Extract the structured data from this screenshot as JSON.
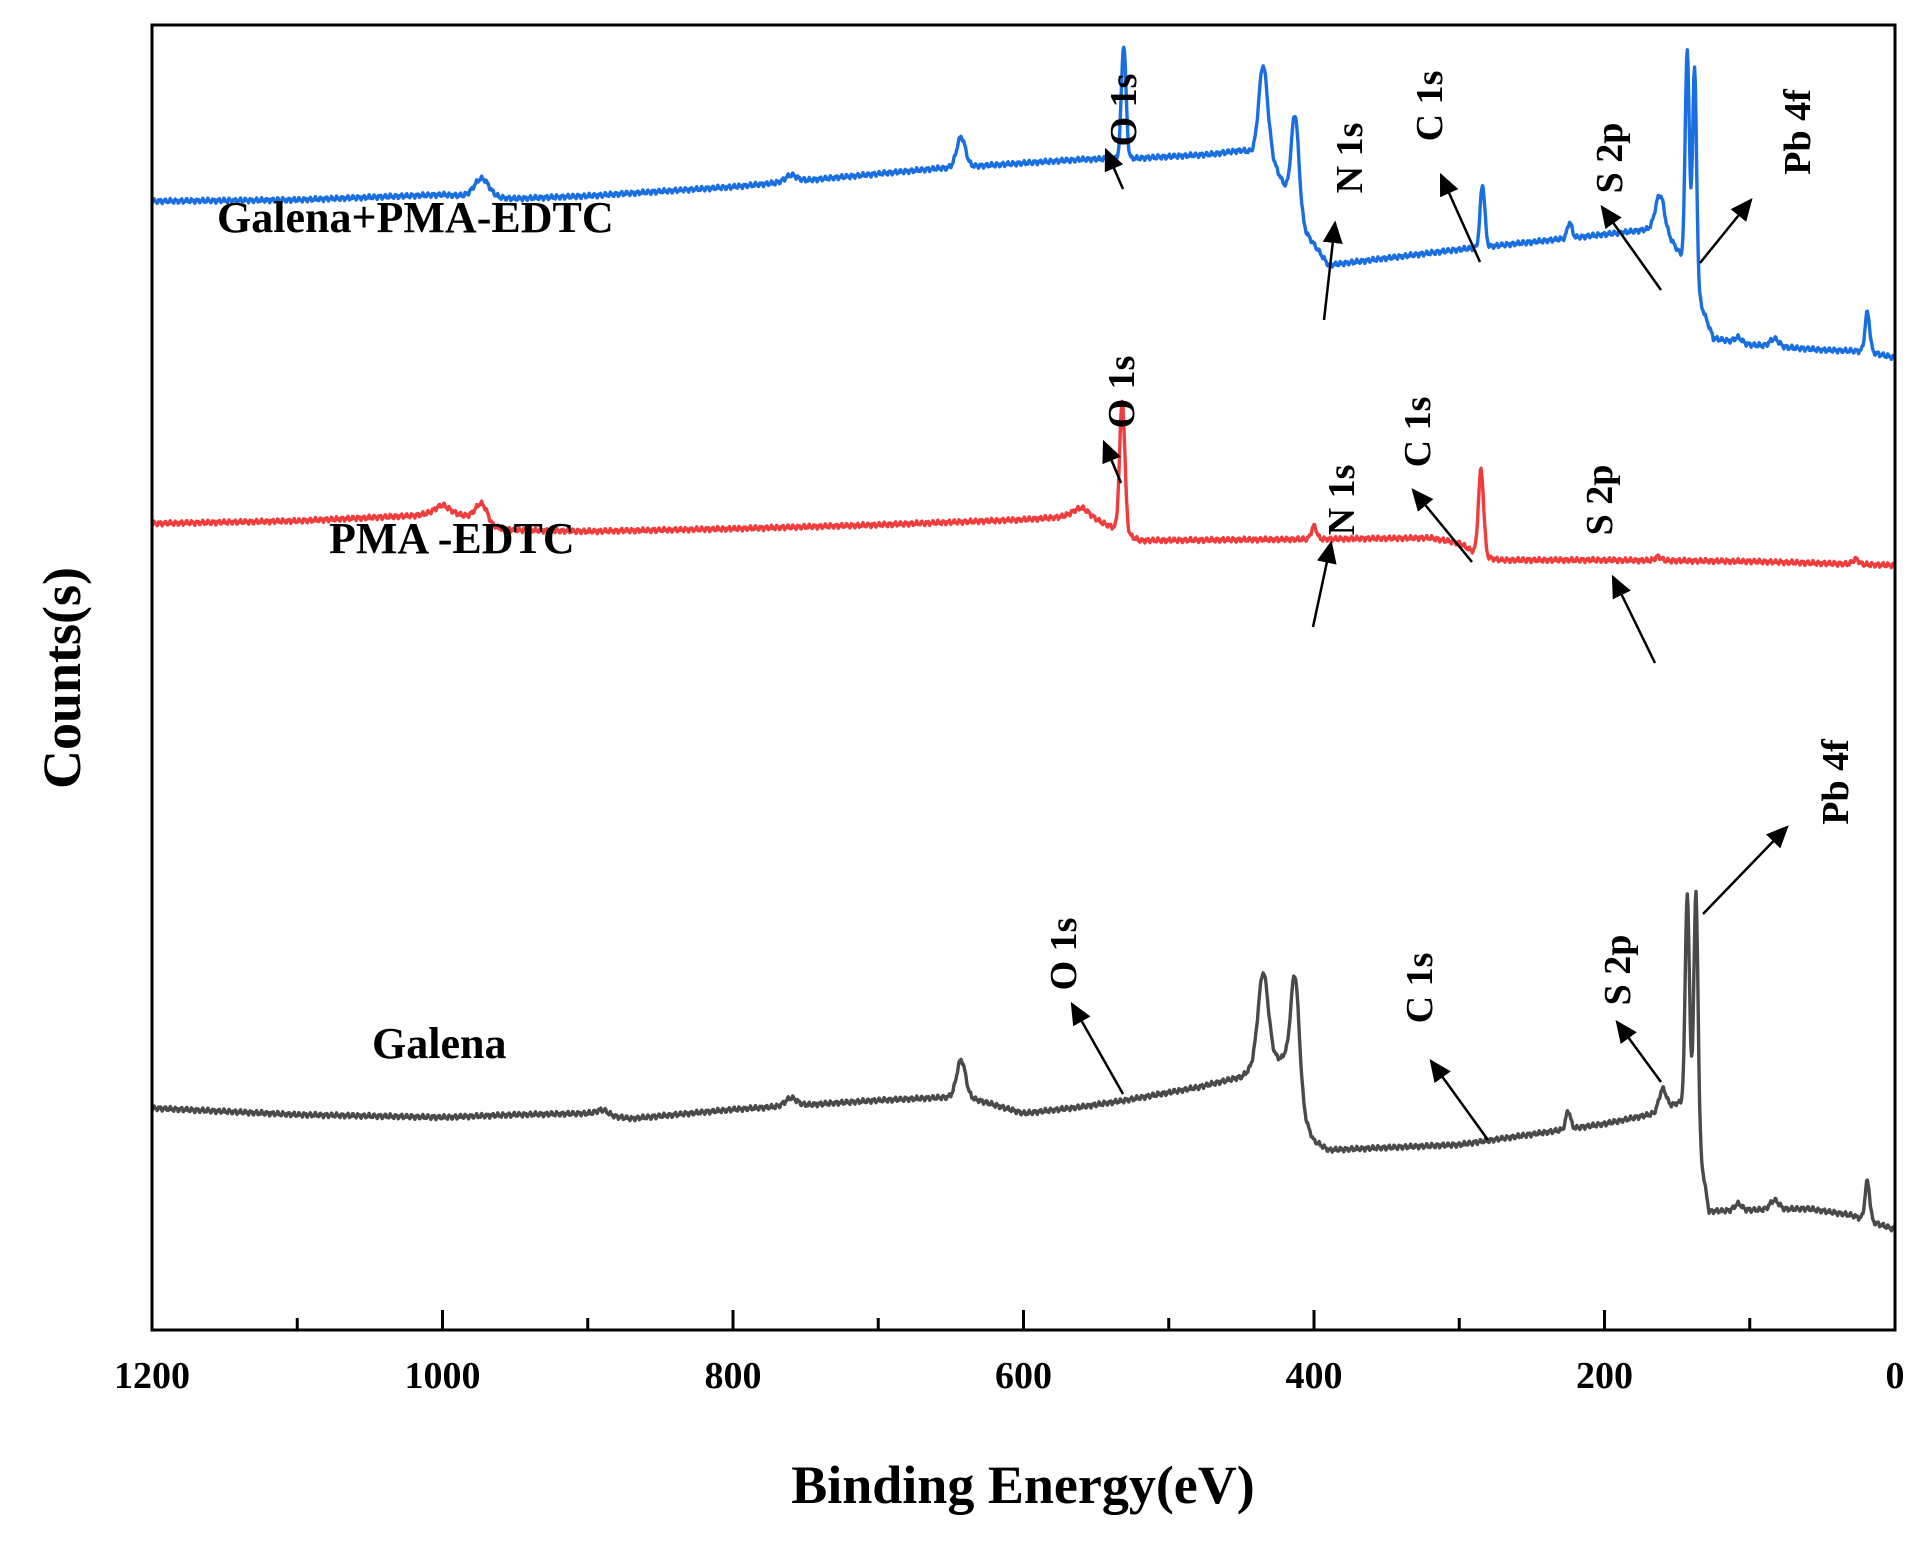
{
  "chart_data": {
    "type": "line",
    "title": "",
    "xlabel": "Binding Energy(eV)",
    "ylabel": "Counts(s)",
    "xlim": [
      1200,
      0
    ],
    "x_reversed": true,
    "y_ticks_shown": false,
    "grid": false,
    "x_ticks": [
      "1200",
      "1000",
      "800",
      "600",
      "400",
      "200",
      "0"
    ],
    "x_tick_values": [
      1200,
      1000,
      800,
      600,
      400,
      200,
      0
    ],
    "ylim": [
      0,
      100
    ],
    "series": [
      {
        "name": "Galena+PMA-EDTC",
        "color": "#1a6fe0",
        "baseline": [
          [
            1200,
            86.5
          ],
          [
            1100,
            86.6
          ],
          [
            1000,
            87.0
          ],
          [
            950,
            86.7
          ],
          [
            900,
            86.9
          ],
          [
            800,
            87.6
          ],
          [
            700,
            88.6
          ],
          [
            660,
            89.0
          ],
          [
            560,
            89.7
          ],
          [
            520,
            89.8
          ],
          [
            470,
            90.1
          ],
          [
            450,
            90.4
          ],
          [
            430,
            90.0
          ],
          [
            405,
            84.0
          ],
          [
            390,
            81.6
          ],
          [
            300,
            82.8
          ],
          [
            230,
            83.6
          ],
          [
            180,
            84.2
          ],
          [
            160,
            84.5
          ],
          [
            145,
            82.0
          ],
          [
            125,
            76.0
          ],
          [
            100,
            75.5
          ],
          [
            50,
            75.1
          ],
          [
            20,
            75.0
          ],
          [
            0,
            74.5
          ]
        ],
        "peaks": [
          {
            "center": 973,
            "height": 1.4,
            "width": 5
          },
          {
            "center": 760,
            "height": 0.5,
            "width": 4
          },
          {
            "center": 643,
            "height": 2.3,
            "width": 3
          },
          {
            "center": 531,
            "height": 8.7,
            "width": 1.6
          },
          {
            "center": 435,
            "height": 6.8,
            "width": 3
          },
          {
            "center": 413,
            "height": 7.2,
            "width": 2.6
          },
          {
            "center": 284,
            "height": 4.8,
            "width": 1.6
          },
          {
            "center": 224,
            "height": 1.2,
            "width": 1.6
          },
          {
            "center": 162,
            "height": 2.5,
            "width": 3
          },
          {
            "center": 143,
            "height": 16.8,
            "width": 1.4
          },
          {
            "center": 138,
            "height": 16.8,
            "width": 1.4
          },
          {
            "center": 108,
            "height": 0.4,
            "width": 2.5
          },
          {
            "center": 83,
            "height": 0.6,
            "width": 3
          },
          {
            "center": 19,
            "height": 3.0,
            "width": 1.6
          }
        ]
      },
      {
        "name": "PMA -EDTC",
        "color": "#f03c3c",
        "baseline": [
          [
            1200,
            61.8
          ],
          [
            1100,
            62.0
          ],
          [
            1020,
            62.4
          ],
          [
            1000,
            62.7
          ],
          [
            980,
            62.3
          ],
          [
            965,
            61.5
          ],
          [
            950,
            61.3
          ],
          [
            900,
            61.2
          ],
          [
            800,
            61.4
          ],
          [
            700,
            61.7
          ],
          [
            600,
            62.1
          ],
          [
            560,
            62.4
          ],
          [
            540,
            61.6
          ],
          [
            520,
            60.5
          ],
          [
            400,
            60.6
          ],
          [
            320,
            60.7
          ],
          [
            300,
            60.3
          ],
          [
            285,
            59.3
          ],
          [
            272,
            59.0
          ],
          [
            200,
            59.0
          ],
          [
            100,
            58.9
          ],
          [
            0,
            58.6
          ]
        ],
        "peaks": [
          {
            "center": 1000,
            "height": 0.5,
            "width": 5
          },
          {
            "center": 973,
            "height": 1.4,
            "width": 4
          },
          {
            "center": 560,
            "height": 0.6,
            "width": 6
          },
          {
            "center": 532,
            "height": 10.0,
            "width": 1.8
          },
          {
            "center": 400,
            "height": 1.0,
            "width": 1.8
          },
          {
            "center": 285,
            "height": 6.6,
            "width": 1.8
          },
          {
            "center": 163,
            "height": 0.3,
            "width": 2
          },
          {
            "center": 27,
            "height": 0.4,
            "width": 2
          }
        ]
      },
      {
        "name": "Galena",
        "color": "#4a4a4a",
        "baseline": [
          [
            1200,
            17.0
          ],
          [
            1100,
            16.5
          ],
          [
            1000,
            16.3
          ],
          [
            950,
            16.5
          ],
          [
            900,
            16.6
          ],
          [
            870,
            16.2
          ],
          [
            800,
            16.9
          ],
          [
            700,
            17.6
          ],
          [
            640,
            17.9
          ],
          [
            600,
            16.6
          ],
          [
            560,
            17.1
          ],
          [
            530,
            17.6
          ],
          [
            480,
            18.6
          ],
          [
            450,
            19.4
          ],
          [
            435,
            20.8
          ],
          [
            420,
            20.8
          ],
          [
            410,
            17.0
          ],
          [
            400,
            14.5
          ],
          [
            390,
            13.8
          ],
          [
            300,
            14.2
          ],
          [
            250,
            15.0
          ],
          [
            200,
            15.8
          ],
          [
            165,
            16.6
          ],
          [
            150,
            17.4
          ],
          [
            140,
            17.6
          ],
          [
            128,
            9.1
          ],
          [
            100,
            9.2
          ],
          [
            60,
            9.3
          ],
          [
            30,
            8.8
          ],
          [
            0,
            7.7
          ]
        ],
        "peaks": [
          {
            "center": 890,
            "height": 0.4,
            "width": 4
          },
          {
            "center": 760,
            "height": 0.6,
            "width": 4
          },
          {
            "center": 643,
            "height": 2.8,
            "width": 3
          },
          {
            "center": 435,
            "height": 6.6,
            "width": 3.5
          },
          {
            "center": 413,
            "height": 9.0,
            "width": 3
          },
          {
            "center": 225,
            "height": 1.4,
            "width": 1.6
          },
          {
            "center": 160,
            "height": 1.6,
            "width": 2.5
          },
          {
            "center": 143,
            "height": 16.0,
            "width": 1.4
          },
          {
            "center": 137,
            "height": 18.0,
            "width": 1.4
          },
          {
            "center": 108,
            "height": 0.5,
            "width": 2.5
          },
          {
            "center": 83,
            "height": 0.7,
            "width": 3
          },
          {
            "center": 19,
            "height": 3.0,
            "width": 1.6
          }
        ]
      }
    ],
    "series_labels": [
      {
        "text": "Galena+PMA-EDTC",
        "series": 0
      },
      {
        "text": "PMA -EDTC",
        "series": 1
      },
      {
        "text": "Galena",
        "series": 2
      }
    ],
    "annotations": [
      {
        "series": 0,
        "label": "O 1s",
        "peak_ev": 531
      },
      {
        "series": 0,
        "label": "N 1s",
        "peak_ev": 400
      },
      {
        "series": 0,
        "label": "C 1s",
        "peak_ev": 284
      },
      {
        "series": 0,
        "label": "S 2p",
        "peak_ev": 162
      },
      {
        "series": 0,
        "label": "Pb 4f",
        "peak_ev": 138
      },
      {
        "series": 1,
        "label": "O 1s",
        "peak_ev": 532
      },
      {
        "series": 1,
        "label": "N 1s",
        "peak_ev": 400
      },
      {
        "series": 1,
        "label": "C 1s",
        "peak_ev": 285
      },
      {
        "series": 1,
        "label": "S 2p",
        "peak_ev": 163
      },
      {
        "series": 2,
        "label": "O 1s",
        "peak_ev": 531
      },
      {
        "series": 2,
        "label": "C 1s",
        "peak_ev": 284
      },
      {
        "series": 2,
        "label": "S 2p",
        "peak_ev": 160
      },
      {
        "series": 2,
        "label": "Pb 4f",
        "peak_ev": 137
      }
    ]
  }
}
